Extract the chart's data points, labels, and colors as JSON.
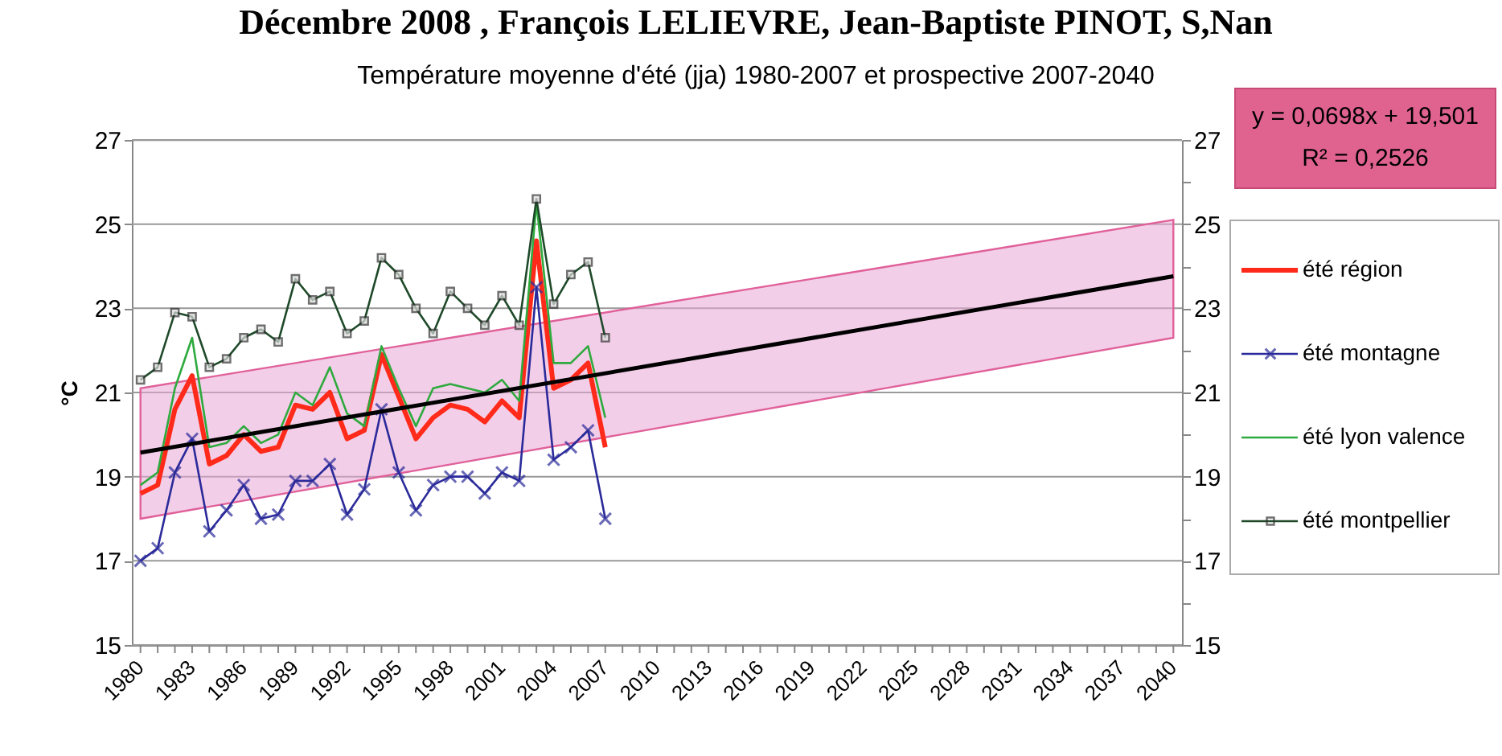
{
  "chart_data": {
    "type": "line",
    "title": "Température moyenne d'été (jja) 1980-2007 et prospective 2007-2040",
    "ylabel": "°C",
    "annotations": [
      "Décembre 2008 , François LELIEVRE, Jean-Baptiste PINOT, S,Nan",
      "y = 0,0698x + 19,501",
      "R² = 0,2526"
    ],
    "x": [
      1980,
      1981,
      1982,
      1983,
      1984,
      1985,
      1986,
      1987,
      1988,
      1989,
      1990,
      1991,
      1992,
      1993,
      1994,
      1995,
      1996,
      1997,
      1998,
      1999,
      2000,
      2001,
      2002,
      2003,
      2004,
      2005,
      2006,
      2007
    ],
    "series": [
      {
        "name": "été région",
        "color": "#ff2a1a",
        "marker": "none",
        "values": [
          18.6,
          18.8,
          20.6,
          21.4,
          19.3,
          19.5,
          20.0,
          19.6,
          19.7,
          20.7,
          20.6,
          21.0,
          19.9,
          20.1,
          21.9,
          20.9,
          19.9,
          20.4,
          20.7,
          20.6,
          20.3,
          20.8,
          20.4,
          24.6,
          21.1,
          21.3,
          21.7,
          19.7
        ]
      },
      {
        "name": "été montagne",
        "color": "#2a2a9a",
        "marker": "cross",
        "values": [
          17.0,
          17.3,
          19.1,
          19.9,
          17.7,
          18.2,
          18.8,
          18.0,
          18.1,
          18.9,
          18.9,
          19.3,
          18.1,
          18.7,
          20.6,
          19.1,
          18.2,
          18.8,
          19.0,
          19.0,
          18.6,
          19.1,
          18.9,
          23.5,
          19.4,
          19.7,
          20.1,
          18.0
        ]
      },
      {
        "name": "été lyon valence",
        "color": "#2eaa3e",
        "marker": "none",
        "values": [
          18.8,
          19.1,
          21.1,
          22.3,
          19.7,
          19.8,
          20.2,
          19.8,
          20.0,
          21.0,
          20.7,
          21.6,
          20.5,
          20.2,
          22.1,
          21.1,
          20.2,
          21.1,
          21.2,
          21.1,
          21.0,
          21.3,
          20.8,
          25.5,
          21.7,
          21.7,
          22.1,
          20.4
        ]
      },
      {
        "name": "été montpellier",
        "color": "#1f4a2a",
        "marker": "square",
        "values": [
          21.3,
          21.6,
          22.9,
          22.8,
          21.6,
          21.8,
          22.3,
          22.5,
          22.2,
          23.7,
          23.2,
          23.4,
          22.4,
          22.7,
          24.2,
          23.8,
          23.0,
          22.4,
          23.4,
          23.0,
          22.6,
          23.3,
          22.6,
          25.6,
          23.1,
          23.8,
          24.1,
          22.3
        ]
      },
      {
        "color": "#000000",
        "marker": "none",
        "x": [
          1980,
          2040
        ],
        "values": [
          19.57,
          23.76
        ],
        "lower": [
          18.0,
          22.3
        ],
        "upper": [
          21.1,
          25.1
        ]
      }
    ],
    "xlim": [
      1979.5,
      2040.5
    ],
    "xticks": [
      {
        "value": 1980,
        "label": "1980"
      },
      {
        "value": 1981,
        "label": null
      },
      {
        "value": 1982,
        "label": null
      },
      {
        "value": 1983,
        "label": "1983"
      },
      {
        "value": 1984,
        "label": null
      },
      {
        "value": 1985,
        "label": null
      },
      {
        "value": 1986,
        "label": "1986"
      },
      {
        "value": 1987,
        "label": null
      },
      {
        "value": 1988,
        "label": null
      },
      {
        "value": 1989,
        "label": "1989"
      },
      {
        "value": 1990,
        "label": null
      },
      {
        "value": 1991,
        "label": null
      },
      {
        "value": 1992,
        "label": "1992"
      },
      {
        "value": 1993,
        "label": null
      },
      {
        "value": 1994,
        "label": null
      },
      {
        "value": 1995,
        "label": "1995"
      },
      {
        "value": 1996,
        "label": null
      },
      {
        "value": 1997,
        "label": null
      },
      {
        "value": 1998,
        "label": "1998"
      },
      {
        "value": 1999,
        "label": null
      },
      {
        "value": 2000,
        "label": null
      },
      {
        "value": 2001,
        "label": "2001"
      },
      {
        "value": 2002,
        "label": null
      },
      {
        "value": 2003,
        "label": null
      },
      {
        "value": 2004,
        "label": "2004"
      },
      {
        "value": 2005,
        "label": null
      },
      {
        "value": 2006,
        "label": null
      },
      {
        "value": 2007,
        "label": "2007"
      },
      {
        "value": 2008,
        "label": null
      },
      {
        "value": 2009,
        "label": null
      },
      {
        "value": 2010,
        "label": "2010"
      },
      {
        "value": 2011,
        "label": null
      },
      {
        "value": 2012,
        "label": null
      },
      {
        "value": 2013,
        "label": "2013"
      },
      {
        "value": 2014,
        "label": null
      },
      {
        "value": 2015,
        "label": null
      },
      {
        "value": 2016,
        "label": "2016"
      },
      {
        "value": 2017,
        "label": null
      },
      {
        "value": 2018,
        "label": null
      },
      {
        "value": 2019,
        "label": "2019"
      },
      {
        "value": 2020,
        "label": null
      },
      {
        "value": 2021,
        "label": null
      },
      {
        "value": 2022,
        "label": "2022"
      },
      {
        "value": 2023,
        "label": null
      },
      {
        "value": 2024,
        "label": null
      },
      {
        "value": 2025,
        "label": "2025"
      },
      {
        "value": 2026,
        "label": null
      },
      {
        "value": 2027,
        "label": null
      },
      {
        "value": 2028,
        "label": "2028"
      },
      {
        "value": 2029,
        "label": null
      },
      {
        "value": 2030,
        "label": null
      },
      {
        "value": 2031,
        "label": "2031"
      },
      {
        "value": 2032,
        "label": null
      },
      {
        "value": 2033,
        "label": null
      },
      {
        "value": 2034,
        "label": "2034"
      },
      {
        "value": 2035,
        "label": null
      },
      {
        "value": 2036,
        "label": null
      },
      {
        "value": 2037,
        "label": "2037"
      },
      {
        "value": 2038,
        "label": null
      },
      {
        "value": 2039,
        "label": null
      },
      {
        "value": 2040,
        "label": "2040"
      }
    ],
    "ylim": [
      15,
      27
    ],
    "yticks": [
      15,
      {
        "value": 16,
        "label": null
      },
      17,
      {
        "value": 18,
        "label": null
      },
      19,
      {
        "value": 20,
        "label": null
      },
      21,
      {
        "value": 22,
        "label": null
      },
      23,
      {
        "value": 24,
        "label": null
      },
      25,
      {
        "value": 26,
        "label": null
      },
      27
    ],
    "y2lim": [
      15,
      27
    ],
    "y2ticks": [
      15,
      {
        "value": 16,
        "label": null
      },
      17,
      {
        "value": 18,
        "label": null
      },
      19,
      {
        "value": 20,
        "label": null
      },
      21,
      {
        "value": 22,
        "label": null
      },
      23,
      {
        "value": 24,
        "label": null
      },
      25,
      {
        "value": 26,
        "label": null
      },
      27
    ],
    "grid": "y",
    "legend": "right"
  }
}
